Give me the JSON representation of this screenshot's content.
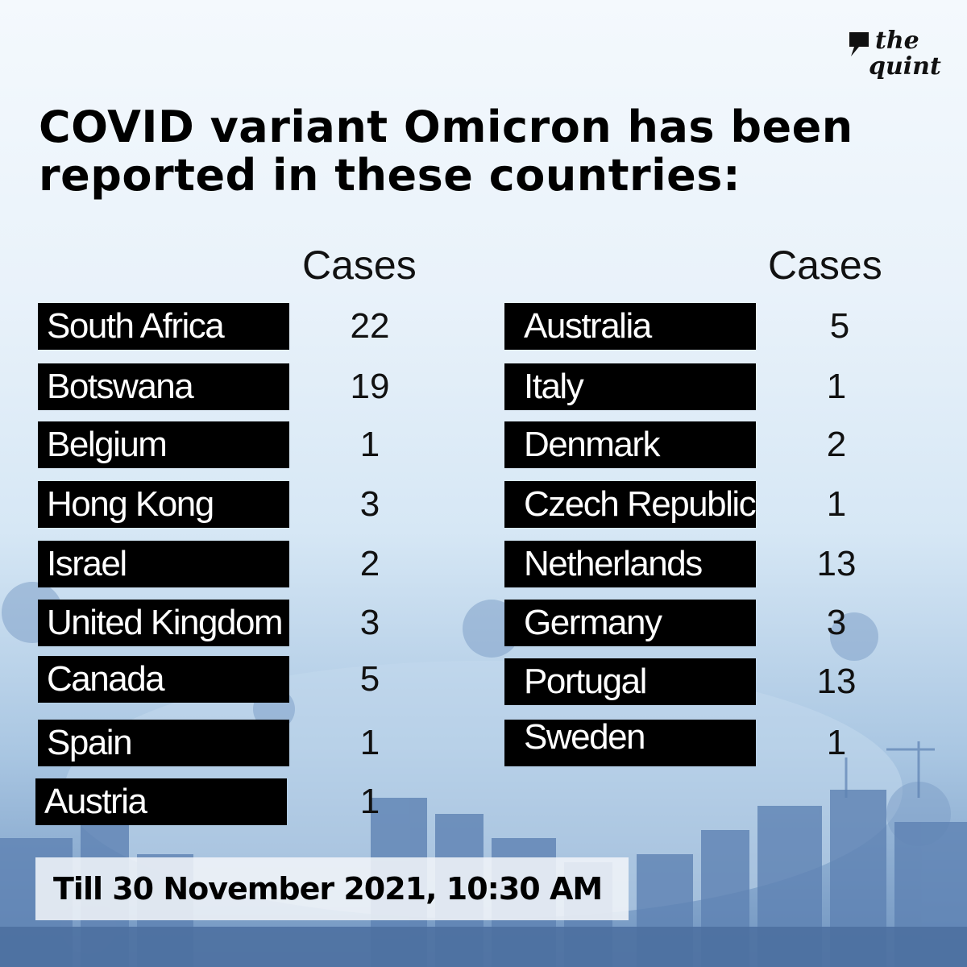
{
  "brand": {
    "line1": "the",
    "line2": "quint"
  },
  "headline": {
    "line1": "COVID variant Omicron has been",
    "line2": "reported in these countries:"
  },
  "columns": [
    {
      "header": "Cases",
      "rows": [
        {
          "country": "South Africa",
          "cases": "22"
        },
        {
          "country": "Botswana",
          "cases": "19"
        },
        {
          "country": "Belgium",
          "cases": "1"
        },
        {
          "country": "Hong Kong",
          "cases": "3"
        },
        {
          "country": "Israel",
          "cases": "2"
        },
        {
          "country": "United Kingdom",
          "cases": "3"
        },
        {
          "country": "Canada",
          "cases": "5"
        },
        {
          "country": "Spain",
          "cases": "1"
        },
        {
          "country": "Austria",
          "cases": "1"
        }
      ]
    },
    {
      "header": "Cases",
      "rows": [
        {
          "country": "Australia",
          "cases": "5"
        },
        {
          "country": "Italy",
          "cases": "1"
        },
        {
          "country": "Denmark",
          "cases": "2"
        },
        {
          "country": "Czech Republic",
          "cases": "1"
        },
        {
          "country": "Netherlands",
          "cases": "13"
        },
        {
          "country": "Germany",
          "cases": "3"
        },
        {
          "country": "Portugal",
          "cases": "13"
        },
        {
          "country": "Sweden",
          "cases": "1"
        }
      ]
    }
  ],
  "footer": {
    "text": "Till 30 November 2021, 10:30  AM"
  }
}
